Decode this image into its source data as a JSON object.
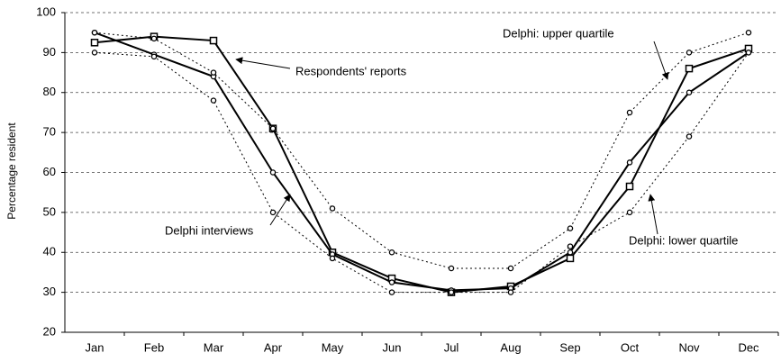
{
  "chart_data": {
    "type": "line",
    "ylabel": "Percentage resident",
    "categories": [
      "Jan",
      "Feb",
      "Mar",
      "Apr",
      "May",
      "Jun",
      "Jul",
      "Aug",
      "Sep",
      "Oct",
      "Nov",
      "Dec"
    ],
    "series": [
      {
        "name": "Respondents' reports",
        "color": "#000000",
        "style": "solid",
        "marker": "square",
        "values": [
          92.5,
          94,
          93,
          71,
          40,
          33.5,
          30,
          31.5,
          38.5,
          56.5,
          86,
          91
        ]
      },
      {
        "name": "Delphi interviews",
        "color": "#000000",
        "style": "solid",
        "marker": "circle",
        "values": [
          95,
          89.5,
          84,
          60,
          39.5,
          32.5,
          30.5,
          31,
          40,
          62.5,
          80,
          90
        ]
      },
      {
        "name": "Delphi: upper quartile",
        "color": "#000000",
        "style": "dotted",
        "marker": "circle",
        "values": [
          95,
          93.5,
          85,
          71,
          51,
          40,
          36,
          36,
          46,
          75,
          90,
          95
        ]
      },
      {
        "name": "Delphi: lower quartile",
        "color": "#000000",
        "style": "dotted",
        "marker": "circle",
        "values": [
          90,
          89,
          78,
          50,
          38.5,
          30,
          30,
          30,
          41.5,
          50,
          69,
          90
        ]
      }
    ],
    "ylim": [
      20,
      100
    ],
    "yticks": [
      20,
      30,
      40,
      50,
      60,
      70,
      80,
      90,
      100
    ],
    "grid": true
  }
}
